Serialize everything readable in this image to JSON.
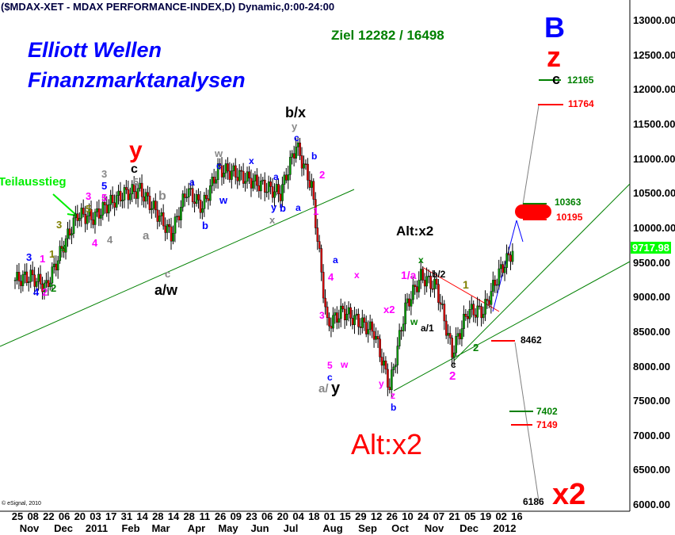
{
  "header": {
    "title": "($MDAX-XET - MDAX PERFORMANCE-INDEX,D) Dynamic,0:00-24:00",
    "copyright": "© eSignal, 2010"
  },
  "brand": {
    "line1": "Elliott Wellen",
    "line2": "Finanzmarktanalysen"
  },
  "target_text": "Ziel 12282 / 16498",
  "chart_data": {
    "type": "candlestick",
    "title": "($MDAX-XET - MDAX PERFORMANCE-INDEX,D) Dynamic,0:00-24:00",
    "ylim": [
      6000,
      13000
    ],
    "y_ticks": [
      "13000.00",
      "12500.00",
      "12000.00",
      "11500.00",
      "11000.00",
      "10500.00",
      "10000.00",
      "9500.00",
      "9000.00",
      "8500.00",
      "8000.00",
      "7500.00",
      "7000.00",
      "6500.00",
      "6000.00"
    ],
    "x_ticks": [
      "25",
      "08",
      "22",
      "06",
      "20",
      "03",
      "17",
      "31",
      "14",
      "28",
      "14",
      "28",
      "11",
      "26",
      "09",
      "23",
      "06",
      "20",
      "04",
      "18",
      "01",
      "15",
      "29",
      "12",
      "26",
      "10",
      "24",
      "07",
      "21",
      "05",
      "19",
      "02",
      "16"
    ],
    "x_months": [
      "Nov",
      "Dec",
      "2011",
      "Feb",
      "Mar",
      "Apr",
      "May",
      "Jun",
      "Jul",
      "Aug",
      "Sep",
      "Oct",
      "Nov",
      "Dec",
      "2012"
    ],
    "close_at_ticks": [
      9250,
      9300,
      9150,
      9700,
      10200,
      10150,
      10350,
      10500,
      10550,
      10250,
      9900,
      10550,
      10300,
      10850,
      10800,
      10700,
      10600,
      10500,
      11200,
      10600,
      8600,
      8800,
      8650,
      8500,
      7700,
      8850,
      9300,
      9150,
      8200,
      8800,
      8800,
      9350,
      9717.98
    ],
    "last_price": "9717.98",
    "colors": {
      "up": "#00a000",
      "down": "#e00000",
      "trend": "#008000"
    },
    "levels": [
      {
        "value": "12165",
        "color": "#008000"
      },
      {
        "value": "11764",
        "color": "#ff0000"
      },
      {
        "value": "10363",
        "color": "#008000"
      },
      {
        "value": "10195",
        "color": "#ff0000"
      },
      {
        "value": "8462",
        "color": "#000000"
      },
      {
        "value": "7402",
        "color": "#008000"
      },
      {
        "value": "7149",
        "color": "#ff0000"
      },
      {
        "value": "6186",
        "color": "#000000"
      }
    ]
  },
  "big_labels": {
    "B": "B",
    "z": "z",
    "c": "c",
    "x2": "x2",
    "alt_red": "Alt:x2",
    "alt_black": "Alt:x2",
    "teilausstieg": "Teilausstieg"
  },
  "wave_labels": [
    "y",
    "c",
    "5",
    "b",
    "a",
    "a/w",
    "c",
    "3",
    "4",
    "1",
    "2",
    "1",
    "2",
    "3",
    "4",
    "5",
    "3",
    "4",
    "3",
    "5",
    "5",
    "4",
    "b/x",
    "y",
    "c",
    "w",
    "c",
    "a",
    "b",
    "w",
    "x",
    "a",
    "y",
    "x",
    "b",
    "a",
    "b",
    "2",
    "1",
    "a",
    "4",
    "3",
    "5",
    "c",
    "a/",
    "y",
    "w",
    "x",
    "x2",
    "y",
    "z",
    "b",
    "x",
    "1/a",
    "b/2",
    "w",
    "a/1",
    "1",
    "c",
    "2",
    "2"
  ]
}
